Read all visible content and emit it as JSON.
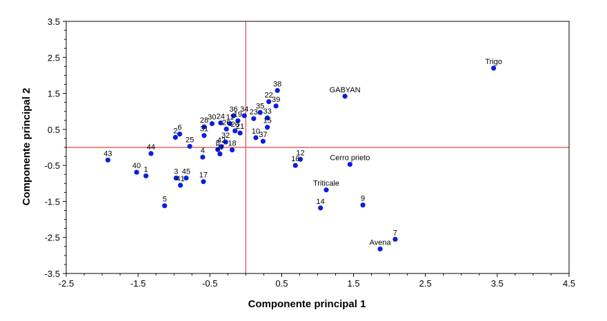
{
  "chart_data": {
    "type": "scatter",
    "xlabel": "Componente principal 1",
    "ylabel": "Componente principal 2",
    "xlim": [
      -2.5,
      4.5
    ],
    "ylim": [
      -3.5,
      3.5
    ],
    "xticks": [
      "-2.5",
      "-1.5",
      "-0.5",
      "0.5",
      "1.5",
      "2.5",
      "3.5",
      "4.5"
    ],
    "yticks": [
      "3.5",
      "2.5",
      "1.5",
      "0.5",
      "-0.5",
      "-1.5",
      "-2.5",
      "-3.5"
    ],
    "reference_lines": {
      "x": 0,
      "y": 0,
      "color": "#e8424a"
    },
    "grid": false,
    "point_color": "#0a1ee0",
    "points": [
      {
        "label": "Trigo",
        "x": 3.45,
        "y": 2.2
      },
      {
        "label": "GABYAN",
        "x": 1.38,
        "y": 1.42
      },
      {
        "label": "Cerro prieto",
        "x": 1.45,
        "y": -0.47
      },
      {
        "label": "Triticale",
        "x": 1.12,
        "y": -1.18
      },
      {
        "label": "Avena",
        "x": 1.87,
        "y": -2.82
      },
      {
        "label": "7",
        "x": 2.08,
        "y": -2.55
      },
      {
        "label": "9",
        "x": 1.63,
        "y": -1.6
      },
      {
        "label": "14",
        "x": 1.04,
        "y": -1.68
      },
      {
        "label": "12",
        "x": 0.76,
        "y": -0.33
      },
      {
        "label": "16",
        "x": 0.69,
        "y": -0.5
      },
      {
        "label": "38",
        "x": 0.44,
        "y": 1.58
      },
      {
        "label": "22",
        "x": 0.32,
        "y": 1.27
      },
      {
        "label": "39",
        "x": 0.42,
        "y": 1.15
      },
      {
        "label": "35",
        "x": 0.2,
        "y": 0.97
      },
      {
        "label": "33",
        "x": 0.3,
        "y": 0.82
      },
      {
        "label": "23",
        "x": 0.11,
        "y": 0.8
      },
      {
        "label": "15",
        "x": 0.3,
        "y": 0.56
      },
      {
        "label": "37",
        "x": 0.24,
        "y": 0.17
      },
      {
        "label": "10",
        "x": 0.14,
        "y": 0.27
      },
      {
        "label": "36",
        "x": -0.17,
        "y": 0.88
      },
      {
        "label": "34",
        "x": -0.02,
        "y": 0.88
      },
      {
        "label": "19",
        "x": -0.11,
        "y": 0.74
      },
      {
        "label": "11",
        "x": -0.22,
        "y": 0.66
      },
      {
        "label": "24",
        "x": -0.35,
        "y": 0.68
      },
      {
        "label": "30",
        "x": -0.47,
        "y": 0.66
      },
      {
        "label": "21",
        "x": -0.08,
        "y": 0.4
      },
      {
        "label": "26",
        "x": -0.27,
        "y": 0.51
      },
      {
        "label": "20",
        "x": -0.15,
        "y": 0.46
      },
      {
        "label": "28",
        "x": -0.58,
        "y": 0.57
      },
      {
        "label": "31",
        "x": -0.58,
        "y": 0.33
      },
      {
        "label": "2",
        "x": -0.98,
        "y": 0.28
      },
      {
        "label": "6",
        "x": -0.92,
        "y": 0.37
      },
      {
        "label": "25",
        "x": -0.78,
        "y": 0.03
      },
      {
        "label": "32",
        "x": -0.28,
        "y": 0.15
      },
      {
        "label": "42",
        "x": -0.34,
        "y": 0.02
      },
      {
        "label": "27",
        "x": -0.36,
        "y": -0.18
      },
      {
        "label": "8",
        "x": -0.39,
        "y": -0.06
      },
      {
        "label": "18",
        "x": -0.19,
        "y": -0.07
      },
      {
        "label": "4",
        "x": -0.6,
        "y": -0.27
      },
      {
        "label": "44",
        "x": -1.32,
        "y": -0.17
      },
      {
        "label": "43",
        "x": -1.92,
        "y": -0.35
      },
      {
        "label": "40",
        "x": -1.52,
        "y": -0.69
      },
      {
        "label": "1",
        "x": -1.39,
        "y": -0.79
      },
      {
        "label": "3",
        "x": -0.97,
        "y": -0.85
      },
      {
        "label": "45",
        "x": -0.83,
        "y": -0.85
      },
      {
        "label": "41",
        "x": -0.91,
        "y": -1.05
      },
      {
        "label": "17",
        "x": -0.59,
        "y": -0.95
      },
      {
        "label": "5",
        "x": -1.13,
        "y": -1.62
      }
    ]
  }
}
